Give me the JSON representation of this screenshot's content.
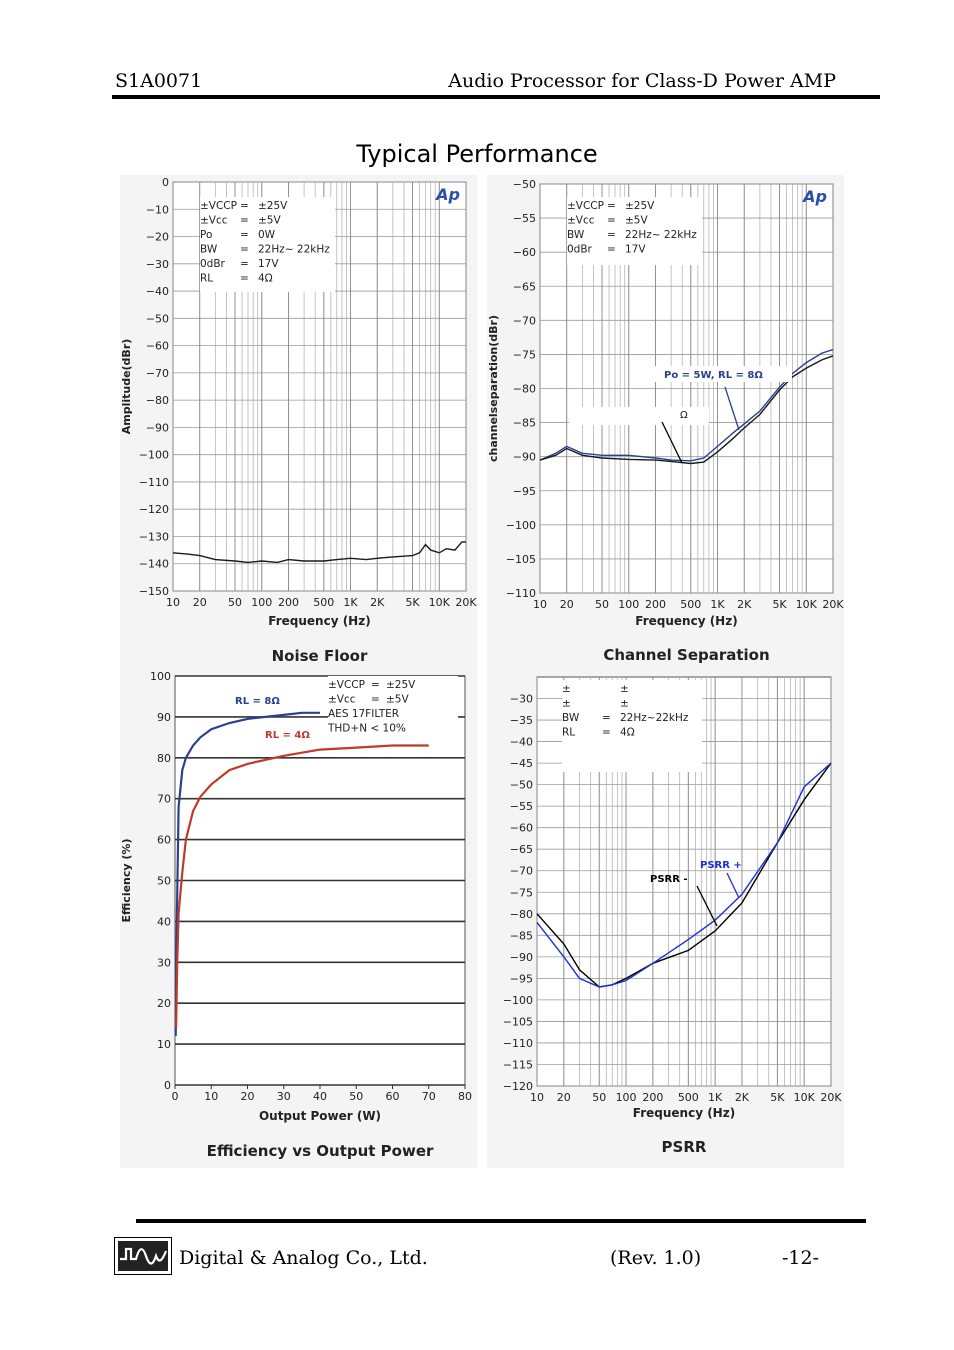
{
  "header": {
    "part_number": "S1A0071",
    "product": "Audio Processor for Class-D Power AMP"
  },
  "page_title": "Typical Performance",
  "footer": {
    "company": "Digital & Analog Co., Ltd.",
    "revision": "(Rev. 1.0)",
    "page": "-12-"
  },
  "colors": {
    "blue": "#2b3f8f",
    "red": "#c0392b",
    "psrr_blue": "#1f2fd6",
    "grid": "#8a8a8a"
  },
  "chart_data": [
    {
      "type": "line",
      "caption": "Noise Floor",
      "logo": "Ap",
      "xlabel": "Frequency (Hz)",
      "ylabel": "Amplitude(dBr)",
      "xscale": "log",
      "xlim": [
        10,
        20000
      ],
      "ylim": [
        -150,
        0
      ],
      "x_ticks": [
        10,
        20,
        50,
        100,
        200,
        500,
        1000,
        2000,
        5000,
        10000,
        20000
      ],
      "x_tick_labels": [
        "10",
        "20",
        "50",
        "100",
        "200",
        "500",
        "1K",
        "2K",
        "5K",
        "10K",
        "20K"
      ],
      "y_ticks": [
        0,
        -10,
        -20,
        -30,
        -40,
        -50,
        -60,
        -70,
        -80,
        -90,
        -100,
        -110,
        -120,
        -130,
        -140,
        -150
      ],
      "conditions": [
        [
          "±VCCP",
          "=",
          "±25V"
        ],
        [
          "±Vcc",
          "=",
          "±5V"
        ],
        [
          "Po",
          "=",
          "0W"
        ],
        [
          "BW",
          "=",
          "22Hz~ 22kHz"
        ],
        [
          "0dBr",
          "=",
          "17V"
        ],
        [
          "RL",
          "=",
          "4Ω"
        ]
      ],
      "series": [
        {
          "x": [
            10,
            15,
            20,
            30,
            50,
            70,
            100,
            150,
            200,
            300,
            500,
            700,
            1000,
            1500,
            2000,
            3000,
            5000,
            6000,
            7000,
            8000,
            10000,
            12000,
            15000,
            18000,
            20000
          ],
          "y": [
            -136,
            -136.5,
            -137,
            -138.5,
            -139,
            -139.5,
            -139,
            -139.5,
            -138.5,
            -139,
            -139,
            -138.5,
            -138,
            -138.5,
            -138,
            -137.5,
            -137,
            -136,
            -133,
            -135,
            -136,
            -134.5,
            -135,
            -132,
            -132
          ]
        }
      ]
    },
    {
      "type": "line",
      "caption": "Channel Separation",
      "logo": "Ap",
      "xlabel": "Frequency (Hz)",
      "ylabel": "channelseparation(dBr)",
      "xscale": "log",
      "xlim": [
        10,
        20000
      ],
      "ylim": [
        -110,
        -50
      ],
      "x_ticks": [
        10,
        20,
        50,
        100,
        200,
        500,
        1000,
        2000,
        5000,
        10000,
        20000
      ],
      "x_tick_labels": [
        "10",
        "20",
        "50",
        "100",
        "200",
        "500",
        "1K",
        "2K",
        "5K",
        "10K",
        "20K"
      ],
      "y_ticks": [
        -50,
        -55,
        -60,
        -65,
        -70,
        -75,
        -80,
        -85,
        -90,
        -95,
        -100,
        -105,
        -110
      ],
      "conditions": [
        [
          "±VCCP",
          "=",
          "±25V"
        ],
        [
          "±Vcc",
          "=",
          "±5V"
        ],
        [
          "BW",
          "=",
          "22Hz~ 22kHz"
        ],
        [
          "0dBr",
          "=",
          "17V"
        ]
      ],
      "annotations": [
        "Po = 5W, RL = 8Ω",
        "Ω"
      ],
      "series": [
        {
          "name": "Po = 5W, RL = 8Ω",
          "x": [
            10,
            15,
            20,
            30,
            50,
            100,
            200,
            300,
            500,
            700,
            1000,
            1500,
            2000,
            3000,
            5000,
            7000,
            10000,
            15000,
            20000
          ],
          "y": [
            -90.5,
            -89.5,
            -88.5,
            -89.5,
            -89.8,
            -89.8,
            -90.2,
            -90.5,
            -90.6,
            -90.2,
            -88.5,
            -86.5,
            -85.2,
            -83.3,
            -79.8,
            -77.8,
            -76.2,
            -74.8,
            -74.3
          ]
        },
        {
          "x": [
            10,
            15,
            20,
            30,
            50,
            100,
            200,
            300,
            500,
            700,
            1000,
            1500,
            2000,
            3000,
            5000,
            7000,
            10000,
            15000,
            20000
          ],
          "y": [
            -90.5,
            -89.8,
            -88.8,
            -89.8,
            -90.2,
            -90.4,
            -90.5,
            -90.7,
            -91,
            -90.8,
            -89.3,
            -87.3,
            -85.8,
            -83.8,
            -80.2,
            -78.3,
            -77,
            -75.8,
            -75.2
          ]
        }
      ]
    },
    {
      "type": "line",
      "caption": "Efficiency vs Output Power",
      "xlabel": "Output Power (W)",
      "ylabel": "Efficiency (%)",
      "xlim": [
        0,
        80
      ],
      "ylim": [
        0,
        100
      ],
      "x_ticks": [
        0,
        10,
        20,
        30,
        40,
        50,
        60,
        70,
        80
      ],
      "y_ticks": [
        0,
        10,
        20,
        30,
        40,
        50,
        60,
        70,
        80,
        90,
        100
      ],
      "conditions": [
        [
          "±VCCP",
          "=",
          "±25V"
        ],
        [
          "±Vcc",
          "=",
          "±5V"
        ],
        [
          "AES 17FILTER",
          "",
          ""
        ],
        [
          "THD+N < 10%",
          "",
          ""
        ]
      ],
      "series": [
        {
          "name": "RL = 8Ω",
          "x": [
            0.2,
            0.5,
            1,
            2,
            3,
            5,
            7,
            10,
            15,
            20,
            25,
            30,
            35,
            40
          ],
          "y": [
            12,
            40,
            68,
            77,
            80,
            83,
            85,
            87,
            88.5,
            89.5,
            90,
            90.5,
            91,
            91
          ]
        },
        {
          "name": "RL = 4Ω",
          "x": [
            0.3,
            0.6,
            1,
            2,
            3,
            5,
            7,
            10,
            15,
            20,
            25,
            30,
            40,
            50,
            60,
            70
          ],
          "y": [
            14,
            30,
            42,
            52,
            60,
            67,
            70.5,
            73.5,
            77,
            78.5,
            79.5,
            80.5,
            82,
            82.5,
            83,
            83
          ]
        }
      ]
    },
    {
      "type": "line",
      "caption": "PSRR",
      "xlabel": "Frequency (Hz)",
      "xscale": "log",
      "xlim": [
        10,
        20000
      ],
      "ylim": [
        -120,
        -25
      ],
      "x_ticks": [
        10,
        20,
        50,
        100,
        200,
        500,
        1000,
        2000,
        5000,
        10000,
        20000
      ],
      "x_tick_labels": [
        "10",
        "20",
        "50",
        "100",
        "200",
        "500",
        "1K",
        "2K",
        "5K",
        "10K",
        "20K"
      ],
      "y_ticks": [
        -30,
        -35,
        -40,
        -45,
        -50,
        -55,
        -60,
        -65,
        -70,
        -75,
        -80,
        -85,
        -90,
        -95,
        -100,
        -105,
        -110,
        -115,
        -120
      ],
      "conditions": [
        [
          "±",
          "",
          "±"
        ],
        [
          "±",
          "",
          "±"
        ],
        [
          "BW",
          "=",
          "22Hz~22kHz"
        ],
        [
          "RL",
          "=",
          "4Ω"
        ]
      ],
      "series": [
        {
          "name": "PSRR -",
          "x": [
            10,
            20,
            30,
            50,
            70,
            100,
            200,
            500,
            1000,
            2000,
            5000,
            10000,
            20000
          ],
          "y": [
            -80,
            -87,
            -93,
            -97,
            -96.5,
            -95,
            -91.5,
            -88.5,
            -84,
            -77.5,
            -63.5,
            -53.5,
            -45
          ]
        },
        {
          "name": "PSRR +",
          "x": [
            10,
            20,
            30,
            50,
            70,
            100,
            200,
            500,
            1000,
            2000,
            5000,
            10000,
            20000
          ],
          "y": [
            -82,
            -90,
            -95,
            -97,
            -96.5,
            -95.5,
            -91.5,
            -86,
            -81.5,
            -75.5,
            -63.5,
            -50.5,
            -45
          ]
        }
      ]
    }
  ]
}
